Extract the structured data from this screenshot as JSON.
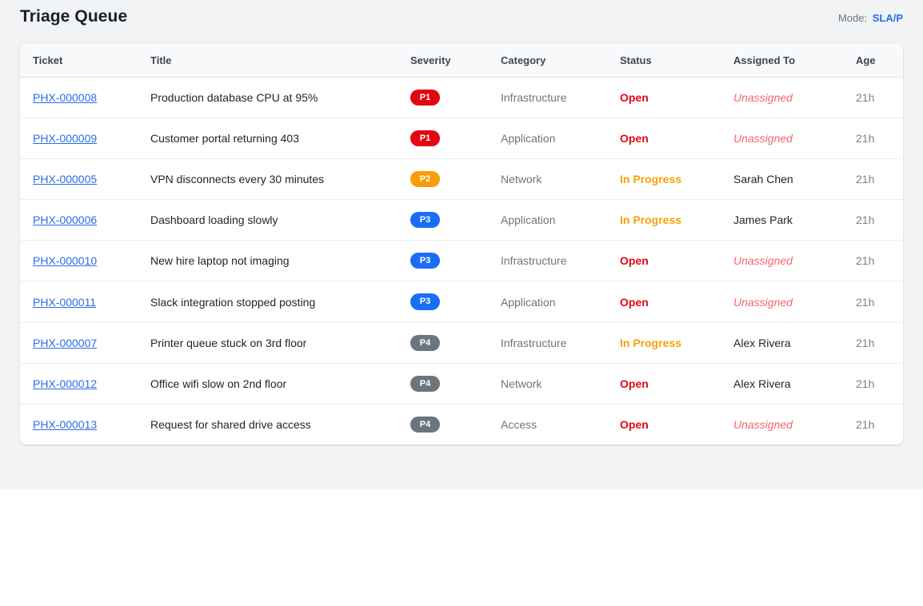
{
  "page": {
    "title": "Triage Queue",
    "mode_label": "Mode:",
    "mode_value": "SLA/P"
  },
  "table": {
    "columns": [
      "Ticket",
      "Title",
      "Severity",
      "Category",
      "Status",
      "Assigned To",
      "Age"
    ],
    "rows": [
      {
        "ticket": "PHX-000008",
        "title": "Production database CPU at 95%",
        "severity": "P1",
        "category": "Infrastructure",
        "status": "Open",
        "assigned": "Unassigned",
        "age": "21h"
      },
      {
        "ticket": "PHX-000009",
        "title": "Customer portal returning 403",
        "severity": "P1",
        "category": "Application",
        "status": "Open",
        "assigned": "Unassigned",
        "age": "21h"
      },
      {
        "ticket": "PHX-000005",
        "title": "VPN disconnects every 30 minutes",
        "severity": "P2",
        "category": "Network",
        "status": "In Progress",
        "assigned": "Sarah Chen",
        "age": "21h"
      },
      {
        "ticket": "PHX-000006",
        "title": "Dashboard loading slowly",
        "severity": "P3",
        "category": "Application",
        "status": "In Progress",
        "assigned": "James Park",
        "age": "21h"
      },
      {
        "ticket": "PHX-000010",
        "title": "New hire laptop not imaging",
        "severity": "P3",
        "category": "Infrastructure",
        "status": "Open",
        "assigned": "Unassigned",
        "age": "21h"
      },
      {
        "ticket": "PHX-000011",
        "title": "Slack integration stopped posting",
        "severity": "P3",
        "category": "Application",
        "status": "Open",
        "assigned": "Unassigned",
        "age": "21h"
      },
      {
        "ticket": "PHX-000007",
        "title": "Printer queue stuck on 3rd floor",
        "severity": "P4",
        "category": "Infrastructure",
        "status": "In Progress",
        "assigned": "Alex Rivera",
        "age": "21h"
      },
      {
        "ticket": "PHX-000012",
        "title": "Office wifi slow on 2nd floor",
        "severity": "P4",
        "category": "Network",
        "status": "Open",
        "assigned": "Alex Rivera",
        "age": "21h"
      },
      {
        "ticket": "PHX-000013",
        "title": "Request for shared drive access",
        "severity": "P4",
        "category": "Access",
        "status": "Open",
        "assigned": "Unassigned",
        "age": "21h"
      }
    ]
  },
  "colors": {
    "severity": {
      "P1": "#e10613",
      "P2": "#f99d07",
      "P3": "#1b6ef3",
      "P4": "#6c757d"
    },
    "status": {
      "Open": "#e00914",
      "In Progress": "#f9a008"
    },
    "link": "#2b6ce6",
    "mode_accent": "#2470e8",
    "unassigned": "#f4656f"
  }
}
